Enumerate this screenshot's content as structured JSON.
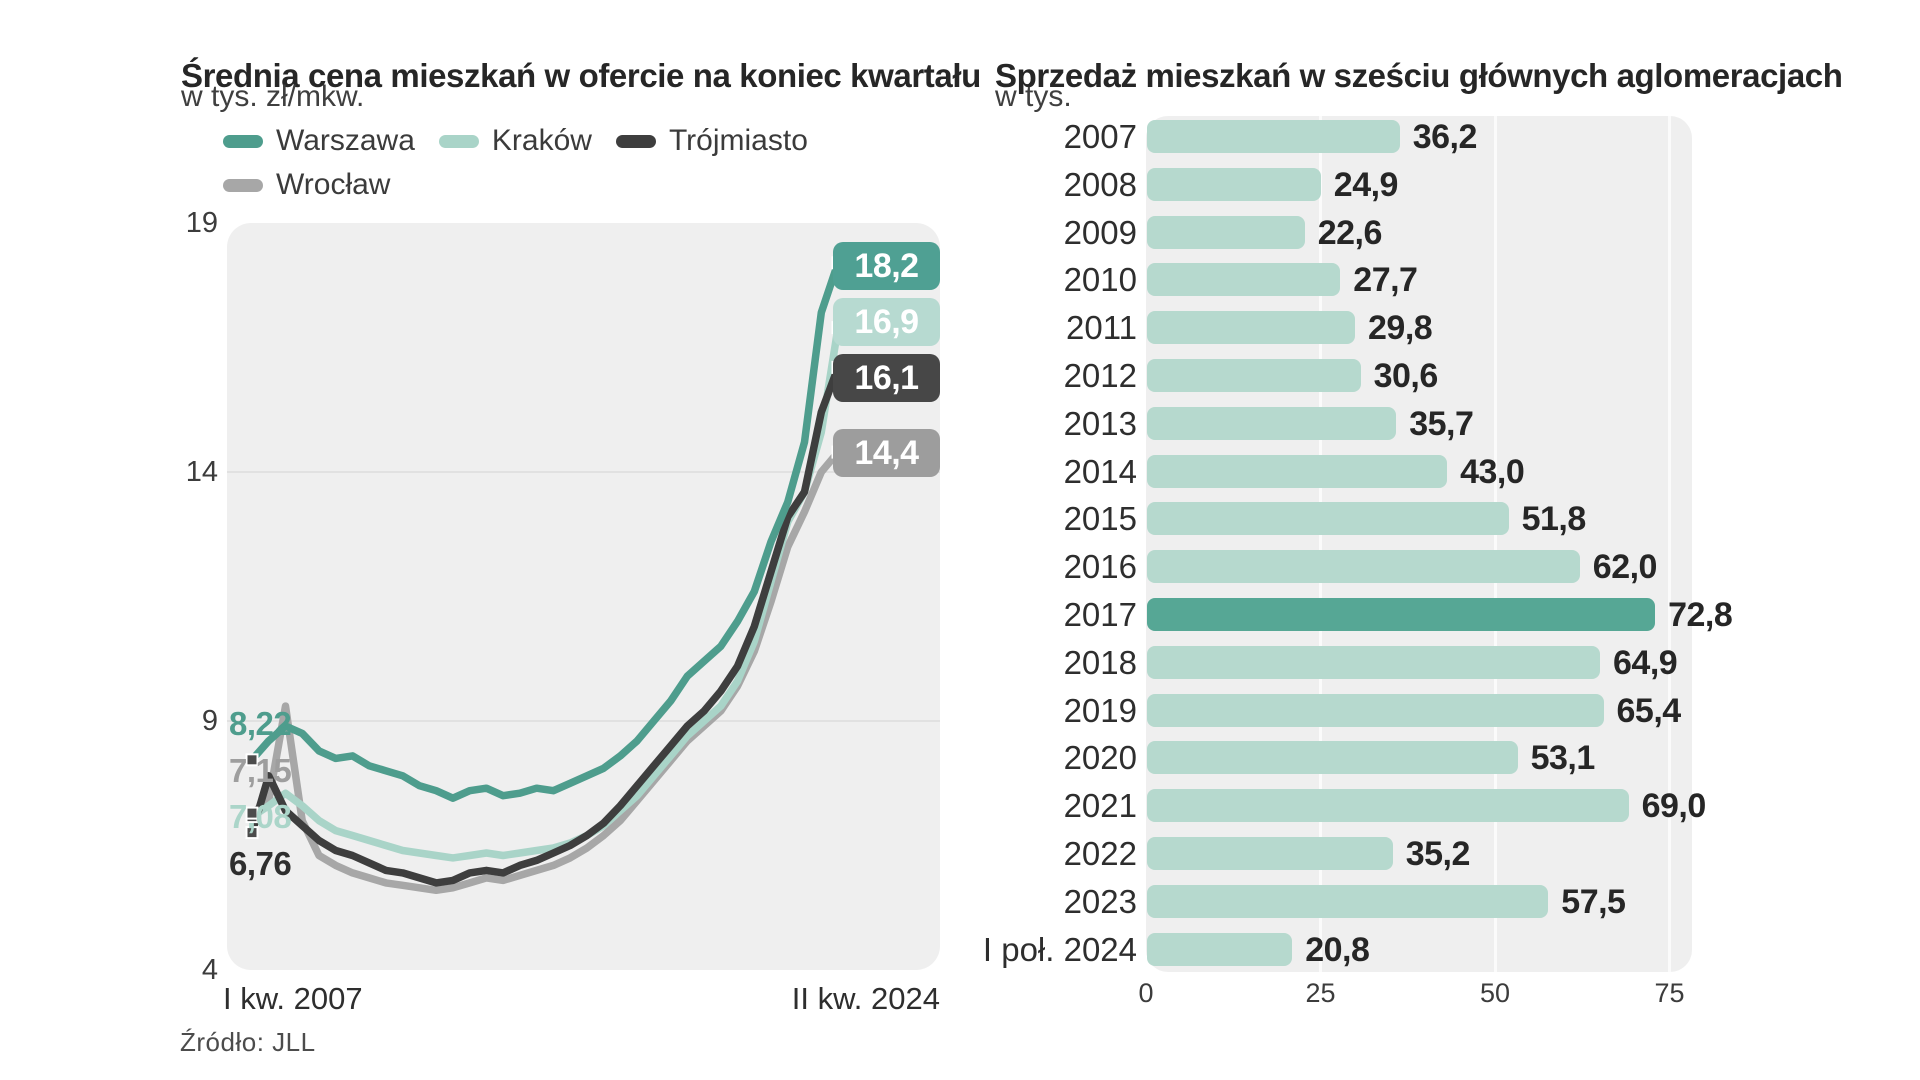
{
  "chart_data": [
    {
      "type": "line",
      "title": "Średnia cena mieszkań w ofercie na koniec kwartału",
      "unit": "w tys. zł/mkw.",
      "source": "Źródło:  JLL",
      "x_axis": {
        "start_label": "I kw. 2007",
        "end_label": "II kw. 2024"
      },
      "ylim": [
        4,
        19
      ],
      "yticks": [
        19,
        14,
        9,
        4
      ],
      "grid_yticks": [
        14,
        9
      ],
      "legend_position": "top-left",
      "plot_bg": "#efefef",
      "series": [
        {
          "name": "Warszawa",
          "color": "#4E9D8D",
          "label_bg": "#4FA093",
          "start_label_color": "#4E9D8D",
          "start_label": "8,22",
          "end_label": "18,2",
          "start_value": 8.22,
          "end_value": 18.2,
          "values": [
            8.22,
            8.6,
            8.9,
            8.75,
            8.4,
            8.25,
            8.3,
            8.1,
            8.0,
            7.9,
            7.7,
            7.6,
            7.45,
            7.6,
            7.65,
            7.5,
            7.55,
            7.65,
            7.6,
            7.75,
            7.9,
            8.05,
            8.3,
            8.6,
            9.0,
            9.4,
            9.9,
            10.2,
            10.5,
            11.0,
            11.6,
            12.6,
            13.4,
            14.6,
            17.2,
            18.2
          ]
        },
        {
          "name": "Kraków",
          "color": "#A9D4C8",
          "label_bg": "#B7DAD1",
          "start_label_color": "#ABD5C9",
          "start_label": "7,08",
          "end_label": "16,9",
          "start_value": 7.08,
          "end_value": 16.9,
          "values": [
            7.08,
            7.3,
            7.55,
            7.3,
            7.0,
            6.8,
            6.7,
            6.6,
            6.5,
            6.4,
            6.35,
            6.3,
            6.25,
            6.3,
            6.35,
            6.3,
            6.35,
            6.4,
            6.45,
            6.55,
            6.7,
            6.9,
            7.2,
            7.5,
            7.9,
            8.3,
            8.7,
            9.0,
            9.3,
            9.8,
            10.6,
            11.8,
            13.0,
            13.6,
            14.8,
            16.9
          ]
        },
        {
          "name": "Trójmiasto",
          "color": "#3E3E3E",
          "label_bg": "#474747",
          "start_label_color": "#2e2e2e",
          "start_label": "6,76",
          "end_label": "16,1",
          "start_value": 6.76,
          "end_value": 16.1,
          "values": [
            6.76,
            7.9,
            7.2,
            6.9,
            6.6,
            6.4,
            6.3,
            6.15,
            6.0,
            5.95,
            5.85,
            5.75,
            5.8,
            5.95,
            6.0,
            5.95,
            6.1,
            6.2,
            6.35,
            6.5,
            6.7,
            6.95,
            7.3,
            7.7,
            8.1,
            8.5,
            8.9,
            9.2,
            9.6,
            10.1,
            10.9,
            12.0,
            13.1,
            13.6,
            15.2,
            16.1
          ]
        },
        {
          "name": "Wrocław",
          "color": "#A7A7A7",
          "label_bg": "#9D9D9D",
          "start_label_color": "#9E9E9E",
          "start_label": "7,15",
          "end_label": "14,4",
          "start_value": 7.15,
          "end_value": 14.4,
          "values": [
            7.15,
            7.4,
            9.3,
            7.0,
            6.3,
            6.1,
            5.95,
            5.85,
            5.75,
            5.7,
            5.65,
            5.6,
            5.65,
            5.75,
            5.85,
            5.8,
            5.9,
            6.0,
            6.1,
            6.25,
            6.45,
            6.7,
            7.0,
            7.4,
            7.8,
            8.2,
            8.6,
            8.9,
            9.2,
            9.7,
            10.4,
            11.4,
            12.5,
            13.2,
            14.0,
            14.4
          ]
        }
      ]
    },
    {
      "type": "bar",
      "orientation": "horizontal",
      "title": "Sprzedaż mieszkań w sześciu głównych aglomeracjach",
      "unit": "w tys.",
      "categories": [
        "2007",
        "2008",
        "2009",
        "2010",
        "2011",
        "2012",
        "2013",
        "2014",
        "2015",
        "2016",
        "2017",
        "2018",
        "2019",
        "2020",
        "2021",
        "2022",
        "2023",
        "I poł. 2024"
      ],
      "values": [
        36.2,
        24.9,
        22.6,
        27.7,
        29.8,
        30.6,
        35.7,
        43.0,
        51.8,
        62.0,
        72.8,
        64.9,
        65.4,
        53.1,
        69.0,
        35.2,
        57.5,
        20.8
      ],
      "value_labels": [
        "36,2",
        "24,9",
        "22,6",
        "27,7",
        "29,8",
        "30,6",
        "35,7",
        "43,0",
        "51,8",
        "62,0",
        "72,8",
        "64,9",
        "65,4",
        "53,1",
        "69,0",
        "35,2",
        "57,5",
        "20,8"
      ],
      "highlight_index": 10,
      "xticks": [
        0,
        25,
        50,
        75
      ],
      "xlim": [
        0,
        75
      ],
      "grid": true,
      "bar_color": "#B6D9CE",
      "highlight_color": "#56A795",
      "plot_bg": "#efefef"
    }
  ]
}
